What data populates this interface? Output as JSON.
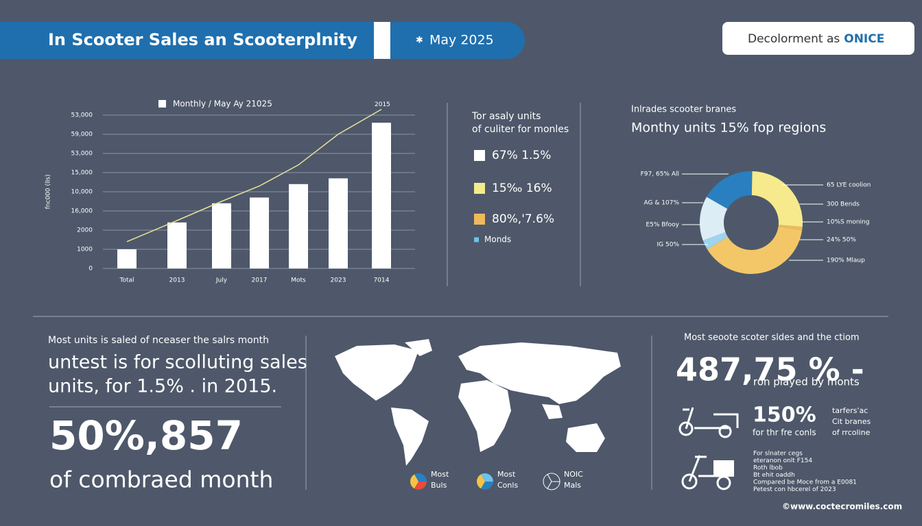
{
  "header": {
    "title": "In Scooter Sales an Scooterplnity",
    "date": "May 2025",
    "button_text": "Decolorment as",
    "button_emphasis": "ONICE"
  },
  "chart_data": [
    {
      "type": "bar",
      "y_label": "fnc000 (lIs)",
      "annotation": "2015",
      "categories": [
        "Total",
        "2013",
        "July",
        "2017",
        "Mots",
        "2023",
        "7014"
      ],
      "series": [
        {
          "name": "Monthly / May Ay 21025",
          "type": "bar",
          "color": "#ffffff",
          "values": [
            1000,
            2400,
            3400,
            3700,
            4400,
            4700,
            7600
          ]
        },
        {
          "type": "line",
          "color": "#e8e39a",
          "values": [
            1400,
            2500,
            3500,
            4300,
            5400,
            7000,
            8300
          ]
        }
      ],
      "ylim": [
        0,
        8500
      ],
      "yticks": [
        0,
        1000,
        2000,
        {
          "value": 3000,
          "label": "16,000"
        },
        {
          "value": 4000,
          "label": "10,000"
        },
        {
          "value": 5000,
          "label": "15,000"
        },
        {
          "value": 6000,
          "label": "53,000"
        },
        {
          "value": 7000,
          "label": "59,000"
        },
        {
          "value": 8000,
          "label": "53,000"
        }
      ],
      "grid": true
    },
    {
      "type": "pie",
      "title": "Inlrades scooter branes",
      "subtitle": "Monthy units 15% fop regions",
      "values": [
        17,
        26,
        1,
        39,
        3,
        14
      ],
      "colors": [
        "#2a7fc0",
        "#f6ea8c",
        "#f0b95a",
        "#f3c768",
        "#9fd4ef",
        "#dcedf6"
      ],
      "left_labels": [
        "F97, 65% All",
        "AG & 107%",
        "E5% Bfooy",
        "IG 50%"
      ],
      "right_labels": [
        "65 LYE coolion",
        "300 Bends",
        "10%S moning",
        "24% 50%",
        "190% Mlaup"
      ]
    }
  ],
  "legend_panel": {
    "title": [
      "Tor asaly units",
      "of culiter for monles"
    ],
    "items": [
      {
        "label": "67% 1.5%",
        "color": "#ffffff"
      },
      {
        "label": "15‰ 16%",
        "color": "#f6ea8c"
      },
      {
        "label": "80%,'7.6%",
        "color": "#f0b95a"
      },
      {
        "label": "Monds",
        "color": "#6ec1ee"
      }
    ]
  },
  "left_text": {
    "intro": "Most units is saled of nceaser the salrs month",
    "line1": "untest is for scolluting sales",
    "line2": "units, for  1.5% . in 2015.",
    "big": "50%,857",
    "caption": "of combraed month"
  },
  "map_legend": [
    {
      "top": "Most",
      "bottom": "Buls"
    },
    {
      "top": "Most",
      "bottom": "Conls"
    },
    {
      "top": "NOIC",
      "bottom": "Mals"
    }
  ],
  "stats": {
    "intro": "Most seoote scoter sldes and the ctiom",
    "big": "487,75 % -",
    "big_caption": "ron played by monts",
    "mid": "150%",
    "mid_caption": "for thr fre conls",
    "side": [
      "tarfers'ac",
      "Cit branes",
      "of rrcoline"
    ],
    "notes": [
      "For slnater cegs",
      "eteranon onlt F154",
      "Roth lbob",
      "Bt ehit oaddh",
      "Compared be Moce from a E0081",
      "Petest con hbcerel of 2023"
    ]
  },
  "footer": "©www.coctecromiles.com"
}
